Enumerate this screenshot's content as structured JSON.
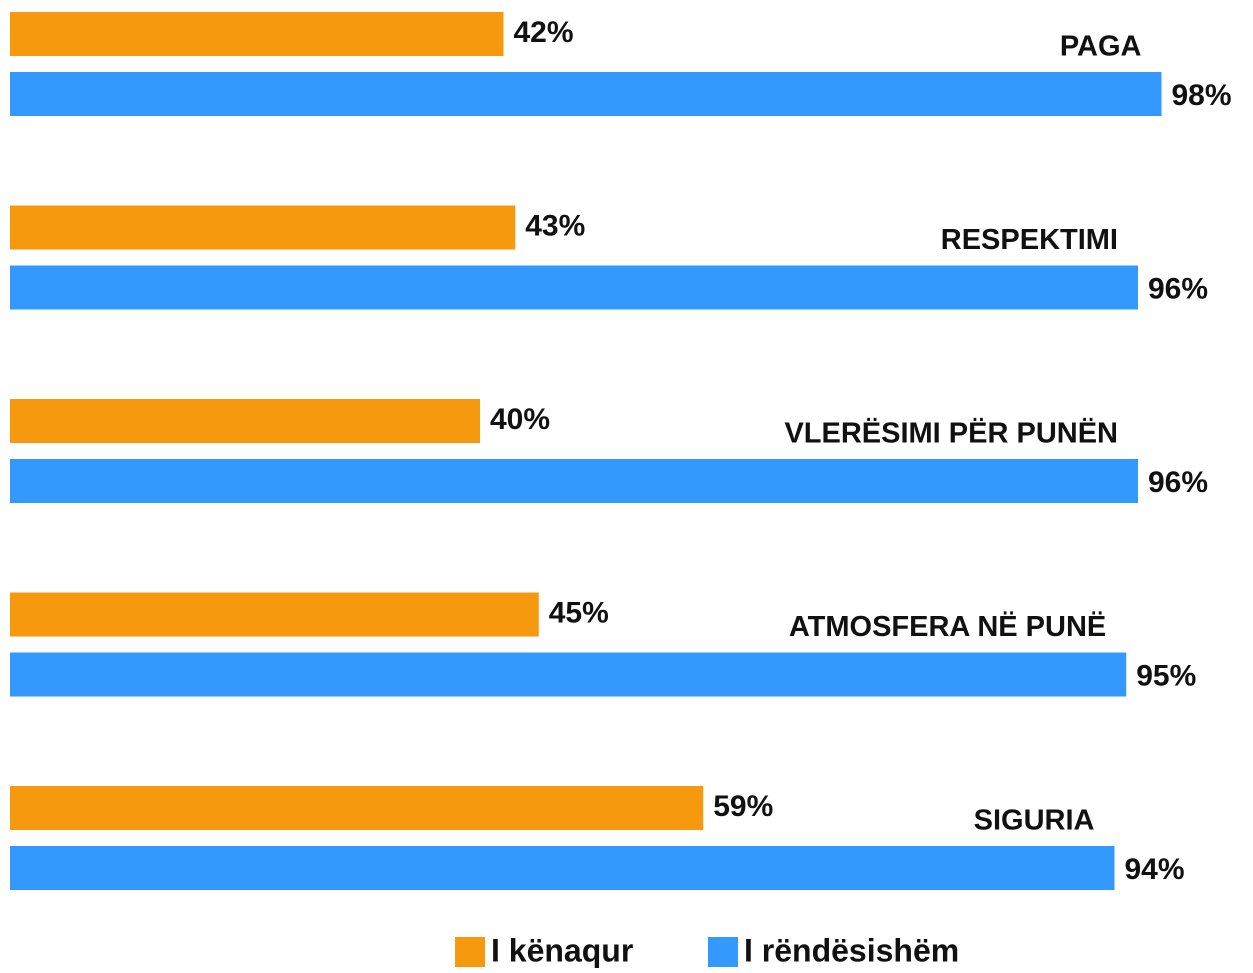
{
  "chart_data": {
    "type": "hbar",
    "categories": [
      "PAGA",
      "RESPEKTIMI",
      "VLERËSIMI PËR PUNËN",
      "ATMOSFERA NË PUNË",
      "SIGURIA"
    ],
    "series": [
      {
        "name": "I kënaqur",
        "color": "#f7990e",
        "values": [
          42,
          43,
          40,
          45,
          59
        ],
        "value_labels": [
          "42%",
          "43%",
          "40%",
          "45%",
          "59%"
        ]
      },
      {
        "name": "I rëndësishëm",
        "color": "#3399ff",
        "values": [
          98,
          96,
          96,
          95,
          94
        ],
        "value_labels": [
          "98%",
          "96%",
          "96%",
          "95%",
          "94%"
        ]
      }
    ],
    "xlim": [
      0,
      100
    ]
  }
}
